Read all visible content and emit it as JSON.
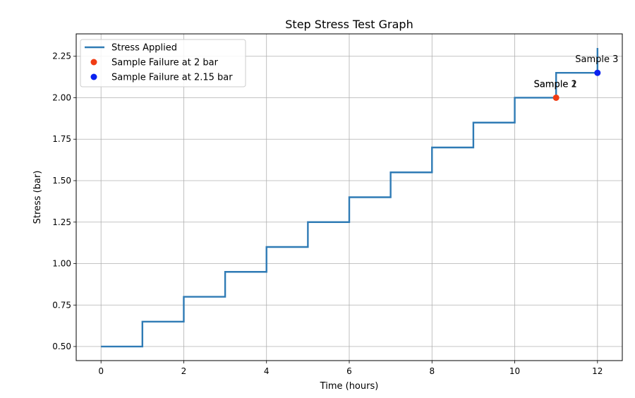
{
  "chart_data": {
    "type": "line",
    "title": "Step Stress Test Graph",
    "xlabel": "Time (hours)",
    "ylabel": "Stress (bar)",
    "xlim": [
      -0.6,
      12.6
    ],
    "ylim": [
      0.415,
      2.385
    ],
    "xticks": [
      0,
      2,
      4,
      6,
      8,
      10,
      12
    ],
    "xtick_labels": [
      "0",
      "2",
      "4",
      "6",
      "8",
      "10",
      "12"
    ],
    "yticks": [
      0.5,
      0.75,
      1.0,
      1.25,
      1.5,
      1.75,
      2.0,
      2.25
    ],
    "ytick_labels": [
      "0.50",
      "0.75",
      "1.00",
      "1.25",
      "1.50",
      "1.75",
      "2.00",
      "2.25"
    ],
    "grid": true,
    "legend_position": "top-left",
    "series": [
      {
        "name": "Stress Applied",
        "kind": "step",
        "color": "#2f7bb5",
        "x": [
          0,
          1,
          2,
          3,
          4,
          5,
          6,
          7,
          8,
          9,
          10,
          11,
          12
        ],
        "y": [
          0.5,
          0.65,
          0.8,
          0.95,
          1.1,
          1.25,
          1.4,
          1.55,
          1.7,
          1.85,
          2.0,
          2.15,
          2.3
        ]
      }
    ],
    "scatter": [
      {
        "name": "Sample Failure at 2 bar",
        "color": "#f03c14",
        "x": [
          11
        ],
        "y": [
          2.0
        ]
      },
      {
        "name": "Sample Failure at 2.15 bar",
        "color": "#0a22f0",
        "x": [
          12
        ],
        "y": [
          2.15
        ]
      }
    ],
    "annotations": [
      {
        "text": "Sample 2",
        "x": 11,
        "y": 2.0
      },
      {
        "text": "Sample 1",
        "x": 11,
        "y": 2.0
      },
      {
        "text": "Sample 3",
        "x": 12,
        "y": 2.15
      }
    ]
  }
}
